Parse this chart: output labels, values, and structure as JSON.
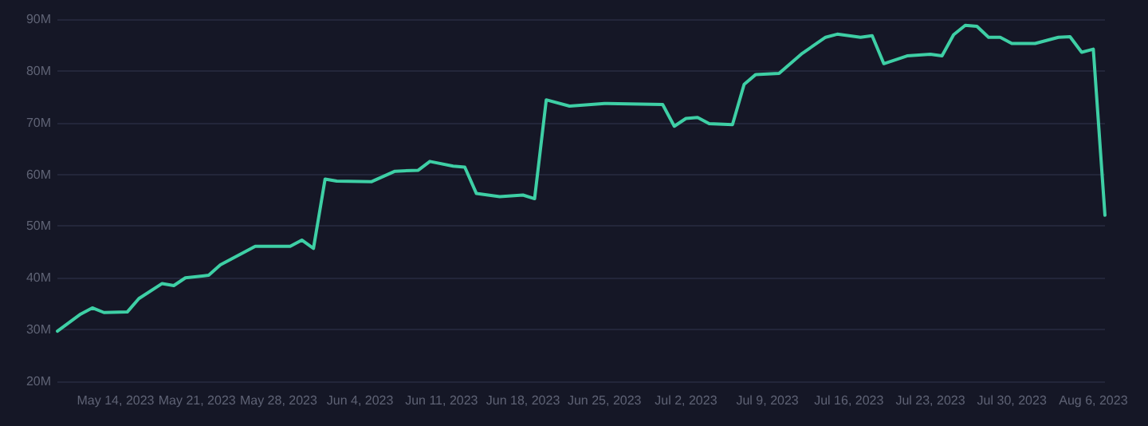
{
  "chart_data": {
    "type": "line",
    "x": [
      "2023-05-09",
      "2023-05-11",
      "2023-05-12",
      "2023-05-13",
      "2023-05-15",
      "2023-05-16",
      "2023-05-18",
      "2023-05-19",
      "2023-05-20",
      "2023-05-22",
      "2023-05-23",
      "2023-05-26",
      "2023-05-29",
      "2023-05-30",
      "2023-05-31",
      "2023-06-01",
      "2023-06-02",
      "2023-06-05",
      "2023-06-07",
      "2023-06-09",
      "2023-06-10",
      "2023-06-12",
      "2023-06-13",
      "2023-06-14",
      "2023-06-16",
      "2023-06-18",
      "2023-06-19",
      "2023-06-20",
      "2023-06-22",
      "2023-06-25",
      "2023-06-30",
      "2023-07-01",
      "2023-07-02",
      "2023-07-03",
      "2023-07-04",
      "2023-07-06",
      "2023-07-07",
      "2023-07-08",
      "2023-07-10",
      "2023-07-12",
      "2023-07-14",
      "2023-07-15",
      "2023-07-17",
      "2023-07-18",
      "2023-07-19",
      "2023-07-21",
      "2023-07-23",
      "2023-07-24",
      "2023-07-25",
      "2023-07-26",
      "2023-07-27",
      "2023-07-28",
      "2023-07-29",
      "2023-07-30",
      "2023-08-01",
      "2023-08-03",
      "2023-08-04",
      "2023-08-05",
      "2023-08-06",
      "2023-08-07"
    ],
    "series": [
      {
        "color": "#3ecfa5",
        "values": [
          29.7,
          33.0,
          34.2,
          33.3,
          33.4,
          36.0,
          38.9,
          38.5,
          40.0,
          40.5,
          42.5,
          46.1,
          46.1,
          47.3,
          45.7,
          59.1,
          58.7,
          58.6,
          60.6,
          60.8,
          62.5,
          61.6,
          61.4,
          56.3,
          55.7,
          56.0,
          55.3,
          74.4,
          73.2,
          73.7,
          73.5,
          69.3,
          70.8,
          71.0,
          69.8,
          69.6,
          77.4,
          79.3,
          79.5,
          83.4,
          86.5,
          87.1,
          86.5,
          86.8,
          81.4,
          82.9,
          83.2,
          82.9,
          87.0,
          88.8,
          88.6,
          86.5,
          86.5,
          85.3,
          85.3,
          86.5,
          86.6,
          83.6,
          84.2,
          52.1
        ]
      }
    ],
    "xlim": [
      "2023-05-09",
      "2023-08-07"
    ],
    "xticks": [
      {
        "value": "2023-05-14",
        "label": "May 14, 2023"
      },
      {
        "value": "2023-05-21",
        "label": "May 21, 2023"
      },
      {
        "value": "2023-05-28",
        "label": "May 28, 2023"
      },
      {
        "value": "2023-06-04",
        "label": "Jun 4, 2023"
      },
      {
        "value": "2023-06-11",
        "label": "Jun 11, 2023"
      },
      {
        "value": "2023-06-18",
        "label": "Jun 18, 2023"
      },
      {
        "value": "2023-06-25",
        "label": "Jun 25, 2023"
      },
      {
        "value": "2023-07-02",
        "label": "Jul 2, 2023"
      },
      {
        "value": "2023-07-09",
        "label": "Jul 9, 2023"
      },
      {
        "value": "2023-07-16",
        "label": "Jul 16, 2023"
      },
      {
        "value": "2023-07-23",
        "label": "Jul 23, 2023"
      },
      {
        "value": "2023-07-30",
        "label": "Jul 30, 2023"
      },
      {
        "value": "2023-08-06",
        "label": "Aug 6, 2023"
      }
    ],
    "ylim": [
      20,
      90
    ],
    "yticks": [
      {
        "value": 20,
        "label": "20M"
      },
      {
        "value": 30,
        "label": "30M"
      },
      {
        "value": 40,
        "label": "40M"
      },
      {
        "value": 50,
        "label": "50M"
      },
      {
        "value": 60,
        "label": "60M"
      },
      {
        "value": 70,
        "label": "70M"
      },
      {
        "value": 80,
        "label": "80M"
      },
      {
        "value": 90,
        "label": "90M"
      }
    ],
    "grid": "y",
    "marker": "none",
    "line_style": "solid"
  }
}
